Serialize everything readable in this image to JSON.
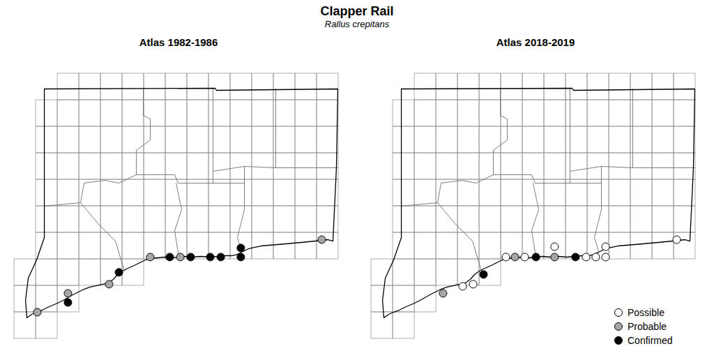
{
  "chart_data": {
    "type": "map",
    "title": "Clapper Rail",
    "subtitle": "Rallus crepitans",
    "xlim": [
      -73.706,
      -71.641
    ],
    "ylim": [
      40.806,
      42.227
    ],
    "tick_labels": false,
    "legend": "bottom right",
    "marker": "circle",
    "panels": [
      {
        "title": "Atlas 1982-1986",
        "series": [
          {
            "name": "Probable",
            "color": "#a6a6a6",
            "x": [
              -73.492,
              -73.315,
              -73.077,
              -72.839,
              -72.665,
              -71.847
            ],
            "y": [
              41.0,
              41.089,
              41.132,
              41.26,
              41.26,
              41.342
            ]
          },
          {
            "name": "Confirmed",
            "color": "#000000",
            "x": [
              -73.315,
              -73.02,
              -72.726,
              -72.605,
              -72.492,
              -72.431,
              -72.315,
              -72.315
            ],
            "y": [
              41.046,
              41.188,
              41.26,
              41.26,
              41.26,
              41.26,
              41.303,
              41.26
            ]
          }
        ]
      },
      {
        "title": "Atlas 2018-2019",
        "series": [
          {
            "name": "Possible",
            "color": "#ffffff",
            "x": [
              -73.097,
              -73.036,
              -72.847,
              -72.738,
              -72.565,
              -72.383,
              -72.327,
              -72.27,
              -72.27,
              -71.859
            ],
            "y": [
              41.122,
              41.132,
              41.26,
              41.26,
              41.309,
              41.26,
              41.26,
              41.309,
              41.26,
              41.342
            ]
          },
          {
            "name": "Probable",
            "color": "#a6a6a6",
            "x": [
              -73.21,
              -72.794,
              -72.565
            ],
            "y": [
              41.089,
              41.26,
              41.26
            ]
          },
          {
            "name": "Confirmed",
            "color": "#000000",
            "x": [
              -72.976,
              -72.673,
              -72.444
            ],
            "y": [
              41.178,
              41.26,
              41.26
            ]
          }
        ]
      }
    ]
  }
}
